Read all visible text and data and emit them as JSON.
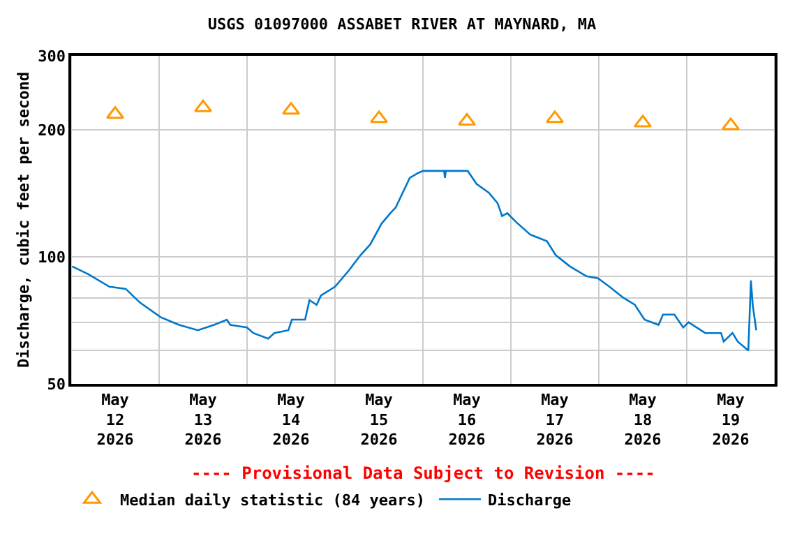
{
  "chart_data": {
    "type": "line",
    "title": "USGS 01097000 ASSABET RIVER AT MAYNARD, MA",
    "ylabel": "Discharge, cubic feet per second",
    "annotations": [
      "---- Provisional Data Subject to Revision ----"
    ],
    "log": "y",
    "grid": true,
    "legend": "bottom",
    "xlim": [
      "2026-05-12T00:00",
      "2026-05-20T00:00"
    ],
    "xticks": [
      {
        "value": "2026-05-12T00:00",
        "label": null
      },
      {
        "value": "2026-05-12T12:00",
        "label": "May\n12\n2026"
      },
      {
        "value": "2026-05-13T00:00",
        "label": null
      },
      {
        "value": "2026-05-13T12:00",
        "label": "May\n13\n2026"
      },
      {
        "value": "2026-05-14T00:00",
        "label": null
      },
      {
        "value": "2026-05-14T12:00",
        "label": "May\n14\n2026"
      },
      {
        "value": "2026-05-15T00:00",
        "label": null
      },
      {
        "value": "2026-05-15T12:00",
        "label": "May\n15\n2026"
      },
      {
        "value": "2026-05-16T00:00",
        "label": null
      },
      {
        "value": "2026-05-16T12:00",
        "label": "May\n16\n2026"
      },
      {
        "value": "2026-05-17T00:00",
        "label": null
      },
      {
        "value": "2026-05-17T12:00",
        "label": "May\n17\n2026"
      },
      {
        "value": "2026-05-18T00:00",
        "label": null
      },
      {
        "value": "2026-05-18T12:00",
        "label": "May\n18\n2026"
      },
      {
        "value": "2026-05-19T00:00",
        "label": null
      },
      {
        "value": "2026-05-19T12:00",
        "label": "May\n19\n2026"
      },
      {
        "value": "2026-05-20T00:00",
        "label": null
      }
    ],
    "ylim": [
      50,
      300
    ],
    "yticks": [
      50,
      {
        "value": 60,
        "label": null
      },
      {
        "value": 70,
        "label": null
      },
      {
        "value": 80,
        "label": null
      },
      {
        "value": 90,
        "label": null
      },
      100,
      200,
      300
    ],
    "series": [
      {
        "name": "Median daily statistic (84 years)",
        "type": "scatter",
        "marker": "triangle",
        "color": "#ff9900",
        "x": [
          "2026-05-12T12:00",
          "2026-05-13T12:00",
          "2026-05-14T12:00",
          "2026-05-15T12:00",
          "2026-05-16T12:00",
          "2026-05-17T12:00",
          "2026-05-18T12:00",
          "2026-05-19T12:00"
        ],
        "values": [
          218,
          226,
          223,
          213,
          210,
          213,
          208,
          205
        ]
      },
      {
        "name": "Discharge",
        "color": "#0077cc",
        "x": [
          "2026-05-12T00:15",
          "2026-05-12T04:40",
          "2026-05-12T10:25",
          "2026-05-12T14:53",
          "2026-05-12T18:43",
          "2026-05-13T00:23",
          "2026-05-13T05:27",
          "2026-05-13T10:34",
          "2026-05-13T14:59",
          "2026-05-13T18:29",
          "2026-05-13T19:26",
          "2026-05-14T00:00",
          "2026-05-14T01:41",
          "2026-05-14T05:46",
          "2026-05-14T07:26",
          "2026-05-14T11:17",
          "2026-05-14T12:14",
          "2026-05-14T15:50",
          "2026-05-14T17:02",
          "2026-05-14T18:58",
          "2026-05-14T20:10",
          "2026-05-15T00:00",
          "2026-05-15T03:50",
          "2026-05-15T06:58",
          "2026-05-15T09:36",
          "2026-05-15T12:43",
          "2026-05-15T15:07",
          "2026-05-15T16:34",
          "2026-05-15T20:24",
          "2026-05-15T22:34",
          "2026-05-16T00:00",
          "2026-05-16T05:46",
          "2026-05-16T06:00",
          "2026-05-16T06:15",
          "2026-05-16T12:14",
          "2026-05-16T14:38",
          "2026-05-16T18:00",
          "2026-05-16T20:24",
          "2026-05-16T21:36",
          "2026-05-16T23:02",
          "2026-05-17T01:26",
          "2026-05-17T05:17",
          "2026-05-17T09:50",
          "2026-05-17T12:14",
          "2026-05-17T16:05",
          "2026-05-17T20:38",
          "2026-05-17T23:46",
          "2026-05-18T02:53",
          "2026-05-18T06:43",
          "2026-05-18T09:50",
          "2026-05-18T12:29",
          "2026-05-18T16:19",
          "2026-05-18T17:31",
          "2026-05-18T20:38",
          "2026-05-18T23:02",
          "2026-05-19T00:29",
          "2026-05-19T05:02",
          "2026-05-19T09:22",
          "2026-05-19T10:05",
          "2026-05-19T12:29",
          "2026-05-19T13:55",
          "2026-05-19T16:48",
          "2026-05-19T17:31",
          "2026-05-19T18:00",
          "2026-05-19T18:58"
        ],
        "values": [
          95,
          91,
          85,
          84,
          78,
          72,
          69,
          67,
          69,
          71,
          69,
          68,
          66,
          64,
          66,
          67,
          71,
          71,
          79,
          77,
          81,
          85,
          93,
          101,
          107,
          120,
          127,
          131,
          154,
          158,
          160,
          160,
          154,
          160,
          160,
          149,
          142,
          134,
          125,
          127,
          121,
          113,
          109,
          101,
          95,
          90,
          89,
          85,
          80,
          77,
          71,
          69,
          73,
          73,
          68,
          70,
          66,
          66,
          63,
          66,
          63,
          60,
          88,
          77,
          67
        ]
      }
    ]
  }
}
